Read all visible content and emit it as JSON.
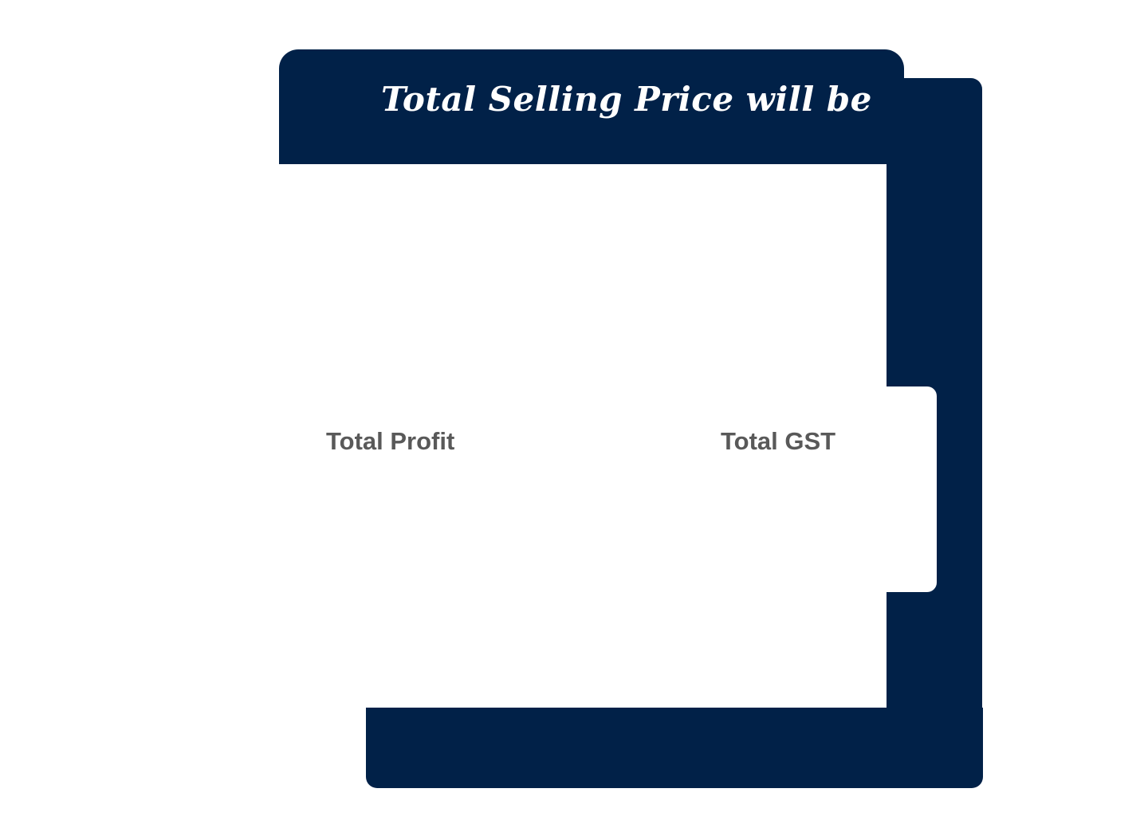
{
  "header": {
    "title": "Total Selling Price will be"
  },
  "stats": {
    "profit_label": "Total Profit",
    "gst_label": "Total GST"
  },
  "colors": {
    "accent": "#012148",
    "label_text": "#595959",
    "background": "#ffffff"
  }
}
